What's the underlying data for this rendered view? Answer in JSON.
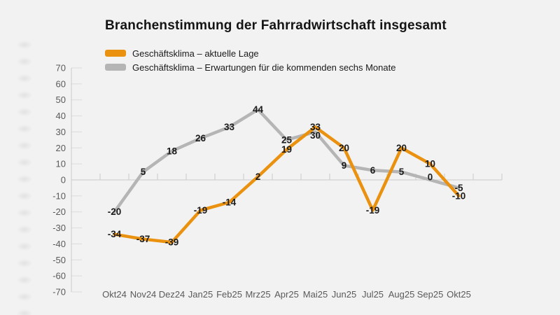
{
  "title": "Branchenstimmung der Fahrradwirtschaft insgesamt",
  "colors": {
    "background": "#f2f2f2",
    "accent_orange": "#EA920F",
    "accent_gray": "#b5b5b5",
    "axis_line": "#cbcbcb",
    "tick_label": "#5a5a5a",
    "data_label": "#1c1c1c"
  },
  "chart_data": {
    "type": "line",
    "title": "Branchenstimmung der Fahrradwirtschaft insgesamt",
    "categories": [
      "Okt24",
      "Nov24",
      "Dez24",
      "Jan25",
      "Feb25",
      "Mrz25",
      "Apr25",
      "Mai25",
      "Jun25",
      "Jul25",
      "Aug25",
      "Sep25",
      "Okt25"
    ],
    "series": [
      {
        "name": "Geschäftsklima – aktuelle Lage",
        "color": "#EA920F",
        "values": [
          -34,
          -37,
          -39,
          -19,
          -14,
          2,
          19,
          33,
          20,
          -19,
          20,
          10,
          -10
        ]
      },
      {
        "name": "Geschäftsklima – Erwartungen für die kommenden sechs Monate",
        "color": "#b5b5b5",
        "values": [
          -20,
          5,
          18,
          26,
          33,
          44,
          25,
          30,
          9,
          6,
          5,
          0,
          -5
        ]
      }
    ],
    "xlabel": "",
    "ylabel": "",
    "ylim": [
      -70,
      70
    ],
    "ytick_step": 10,
    "grid": "none",
    "point_labels": true,
    "legend_position": "top-left",
    "label_dy_overrides": {
      "1": {
        "7": 5,
        "11": -4
      }
    }
  }
}
